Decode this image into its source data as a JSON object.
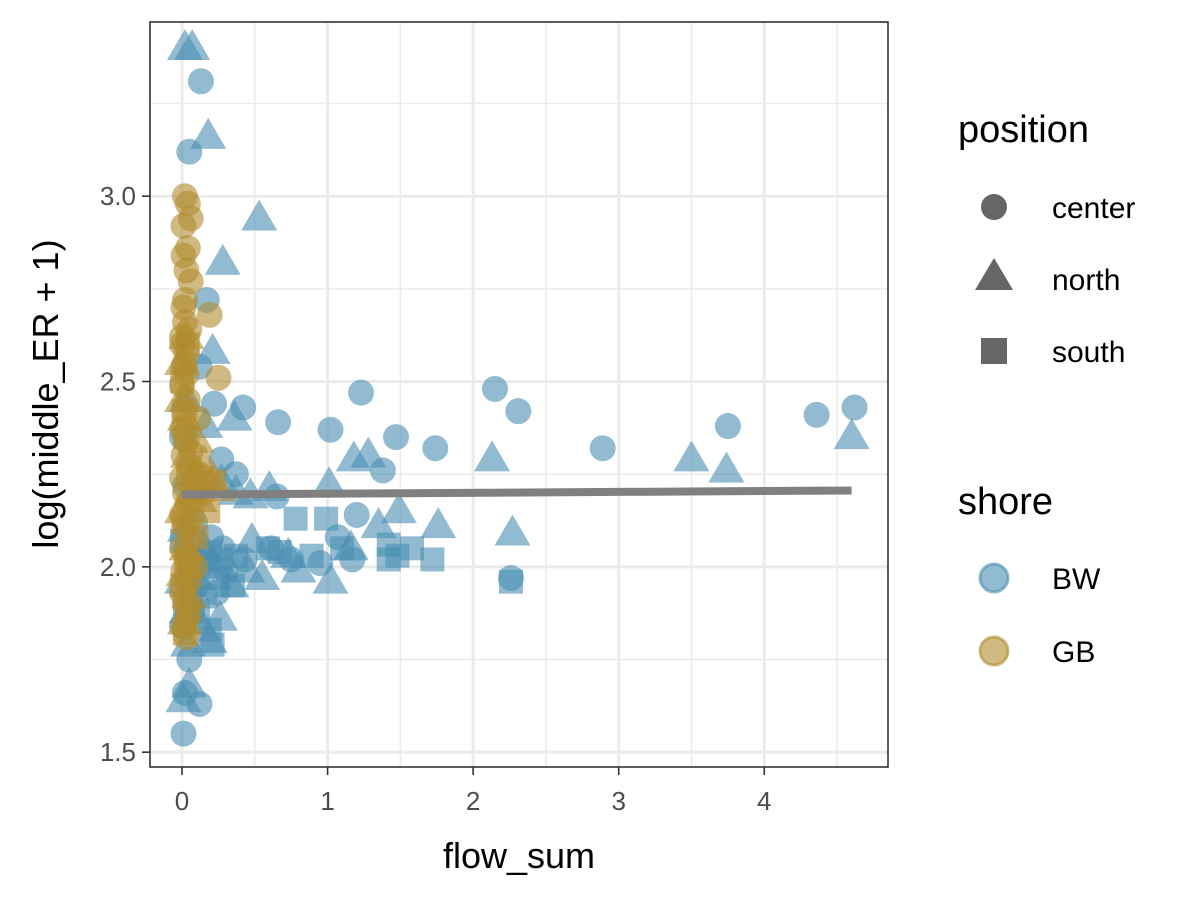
{
  "chart_data": {
    "type": "scatter",
    "xlabel": "flow_sum",
    "ylabel": "log(middle_ER + 1)",
    "xlim": [
      -0.22,
      4.85
    ],
    "ylim": [
      1.46,
      3.47
    ],
    "x_ticks": [
      0,
      1,
      2,
      3,
      4
    ],
    "x_tick_labels": [
      "0",
      "1",
      "2",
      "3",
      "4"
    ],
    "y_ticks": [
      1.5,
      2.0,
      2.5,
      3.0
    ],
    "y_tick_labels": [
      "1.5",
      "2.0",
      "2.5",
      "3.0"
    ],
    "grid": true,
    "theme": "bw",
    "legend_position": "right",
    "legends": [
      {
        "title": "position",
        "items": [
          {
            "label": "center",
            "shape": "circle"
          },
          {
            "label": "north",
            "shape": "triangle"
          },
          {
            "label": "south",
            "shape": "square"
          }
        ]
      },
      {
        "title": "shore",
        "items": [
          {
            "label": "BW",
            "color": "#4a8eb3"
          },
          {
            "label": "GB",
            "color": "#b08c2e"
          }
        ]
      }
    ],
    "colors": {
      "BW": "#4a8eb3",
      "GB": "#b08c2e",
      "trend": "#808080"
    },
    "trend_line": {
      "x": [
        0,
        4.6
      ],
      "y": [
        2.195,
        2.206
      ]
    },
    "series": [
      {
        "shore": "BW",
        "position": "center",
        "points": [
          [
            0.13,
            3.31
          ],
          [
            0.05,
            3.12
          ],
          [
            0.17,
            2.72
          ],
          [
            0.12,
            2.54
          ],
          [
            0.22,
            2.44
          ],
          [
            0.42,
            2.43
          ],
          [
            0.66,
            2.39
          ],
          [
            1.02,
            2.37
          ],
          [
            1.47,
            2.35
          ],
          [
            1.23,
            2.47
          ],
          [
            1.74,
            2.32
          ],
          [
            2.15,
            2.48
          ],
          [
            2.31,
            2.42
          ],
          [
            2.89,
            2.32
          ],
          [
            3.75,
            2.38
          ],
          [
            4.36,
            2.41
          ],
          [
            4.62,
            2.43
          ],
          [
            0.37,
            2.25
          ],
          [
            0.65,
            2.19
          ],
          [
            1.38,
            2.26
          ],
          [
            0.27,
            2.29
          ],
          [
            1.07,
            2.08
          ],
          [
            1.2,
            2.14
          ],
          [
            0.43,
            2.02
          ],
          [
            0.61,
            2.05
          ],
          [
            0.75,
            2.02
          ],
          [
            0.95,
            2.01
          ],
          [
            1.17,
            2.02
          ],
          [
            2.26,
            1.97
          ],
          [
            0.2,
            2.08
          ],
          [
            0.28,
            2.05
          ],
          [
            0.3,
            1.99
          ],
          [
            0.06,
            1.92
          ],
          [
            0.0,
            1.84
          ],
          [
            0.05,
            1.75
          ],
          [
            0.01,
            1.55
          ],
          [
            0.12,
            1.63
          ],
          [
            0.02,
            1.66
          ],
          [
            0.0,
            2.35
          ],
          [
            0.02,
            2.22
          ],
          [
            0.03,
            2.05
          ],
          [
            0.1,
            1.95
          ],
          [
            0.16,
            2.02
          ],
          [
            0.24,
            1.93
          ],
          [
            0.09,
            2.12
          ],
          [
            0.07,
            1.88
          ]
        ]
      },
      {
        "shore": "BW",
        "position": "north",
        "points": [
          [
            0.02,
            3.4
          ],
          [
            0.07,
            3.4
          ],
          [
            0.18,
            3.16
          ],
          [
            0.53,
            2.94
          ],
          [
            0.28,
            2.82
          ],
          [
            0.21,
            2.58
          ],
          [
            0.36,
            2.4
          ],
          [
            0.03,
            2.45
          ],
          [
            0.16,
            2.38
          ],
          [
            1.18,
            2.29
          ],
          [
            1.28,
            2.3
          ],
          [
            2.13,
            2.29
          ],
          [
            3.5,
            2.29
          ],
          [
            3.74,
            2.26
          ],
          [
            4.6,
            2.35
          ],
          [
            0.6,
            2.21
          ],
          [
            1.01,
            2.22
          ],
          [
            1.35,
            2.11
          ],
          [
            1.49,
            2.15
          ],
          [
            1.76,
            2.11
          ],
          [
            2.27,
            2.09
          ],
          [
            0.37,
            2.2
          ],
          [
            0.47,
            2.19
          ],
          [
            0.27,
            2.23
          ],
          [
            0.48,
            2.07
          ],
          [
            0.73,
            2.03
          ],
          [
            1.02,
            1.96
          ],
          [
            1.16,
            2.05
          ],
          [
            0.34,
            1.95
          ],
          [
            0.45,
            1.99
          ],
          [
            0.19,
            1.8
          ],
          [
            0.26,
            1.86
          ],
          [
            0.12,
            1.85
          ],
          [
            0.03,
            1.88
          ],
          [
            0.05,
            1.68
          ],
          [
            0.01,
            1.64
          ],
          [
            0.04,
            1.79
          ],
          [
            0.15,
            2.05
          ],
          [
            0.1,
            1.97
          ],
          [
            0.0,
            1.96
          ],
          [
            0.02,
            2.1
          ],
          [
            0.22,
            2.0
          ],
          [
            0.8,
            1.99
          ],
          [
            0.55,
            1.97
          ]
        ]
      },
      {
        "shore": "BW",
        "position": "south",
        "points": [
          [
            0.78,
            2.13
          ],
          [
            0.99,
            2.13
          ],
          [
            1.42,
            2.06
          ],
          [
            1.58,
            2.05
          ],
          [
            1.48,
            2.03
          ],
          [
            1.72,
            2.02
          ],
          [
            1.42,
            2.02
          ],
          [
            1.1,
            2.05
          ],
          [
            0.89,
            2.03
          ],
          [
            0.67,
            2.04
          ],
          [
            0.59,
            2.05
          ],
          [
            0.37,
            2.03
          ],
          [
            0.27,
            2.02
          ],
          [
            0.2,
            2.04
          ],
          [
            0.12,
            2.01
          ],
          [
            0.25,
            1.97
          ],
          [
            0.35,
            1.95
          ],
          [
            0.16,
            1.92
          ],
          [
            0.19,
            1.83
          ],
          [
            0.21,
            1.79
          ],
          [
            0.11,
            1.88
          ],
          [
            0.08,
            1.95
          ],
          [
            2.26,
            1.96
          ],
          [
            0.06,
            2.02
          ],
          [
            0.0,
            2.07
          ],
          [
            0.02,
            1.9
          ]
        ]
      },
      {
        "shore": "GB",
        "position": "center",
        "points": [
          [
            0.02,
            3.0
          ],
          [
            0.04,
            2.98
          ],
          [
            0.06,
            2.94
          ],
          [
            0.01,
            2.92
          ],
          [
            0.04,
            2.86
          ],
          [
            0.01,
            2.84
          ],
          [
            0.03,
            2.8
          ],
          [
            0.06,
            2.77
          ],
          [
            0.19,
            2.68
          ],
          [
            0.02,
            2.72
          ],
          [
            0.02,
            2.66
          ],
          [
            0.0,
            2.62
          ],
          [
            0.03,
            2.58
          ],
          [
            0.01,
            2.54
          ],
          [
            0.25,
            2.51
          ],
          [
            0.0,
            2.49
          ],
          [
            0.04,
            2.45
          ],
          [
            0.02,
            2.41
          ],
          [
            0.11,
            2.4
          ],
          [
            0.0,
            2.37
          ],
          [
            0.03,
            2.34
          ],
          [
            0.01,
            2.3
          ],
          [
            0.05,
            2.27
          ],
          [
            0.0,
            2.24
          ],
          [
            0.08,
            2.22
          ],
          [
            0.02,
            2.2
          ],
          [
            0.04,
            2.17
          ],
          [
            0.0,
            2.14
          ],
          [
            0.02,
            2.11
          ],
          [
            0.06,
            2.08
          ],
          [
            0.0,
            2.05
          ],
          [
            0.03,
            2.02
          ],
          [
            0.01,
            1.99
          ],
          [
            0.05,
            1.96
          ],
          [
            0.0,
            1.93
          ],
          [
            0.02,
            1.9
          ],
          [
            0.04,
            1.87
          ],
          [
            0.01,
            1.84
          ],
          [
            0.03,
            1.81
          ],
          [
            0.07,
            2.13
          ],
          [
            0.1,
            2.21
          ],
          [
            0.12,
            2.25
          ],
          [
            0.15,
            2.2
          ],
          [
            0.06,
            2.31
          ],
          [
            0.09,
            2.0
          ],
          [
            0.02,
            2.55
          ],
          [
            0.0,
            2.6
          ],
          [
            0.05,
            2.64
          ],
          [
            0.01,
            2.7
          ],
          [
            0.03,
            2.52
          ]
        ]
      },
      {
        "shore": "GB",
        "position": "north",
        "points": [
          [
            0.0,
            2.55
          ],
          [
            0.02,
            2.4
          ],
          [
            0.04,
            2.3
          ],
          [
            0.06,
            2.2
          ],
          [
            0.0,
            2.15
          ],
          [
            0.03,
            2.05
          ],
          [
            0.01,
            1.98
          ],
          [
            0.05,
            1.92
          ],
          [
            0.02,
            1.85
          ],
          [
            0.08,
            2.25
          ],
          [
            0.12,
            2.18
          ],
          [
            0.15,
            2.28
          ],
          [
            0.1,
            2.34
          ],
          [
            0.2,
            2.22
          ],
          [
            0.25,
            2.21
          ],
          [
            0.0,
            2.45
          ],
          [
            0.03,
            2.62
          ]
        ]
      },
      {
        "shore": "GB",
        "position": "south",
        "points": [
          [
            0.0,
            2.5
          ],
          [
            0.02,
            2.35
          ],
          [
            0.04,
            2.25
          ],
          [
            0.01,
            2.12
          ],
          [
            0.03,
            2.02
          ],
          [
            0.0,
            1.95
          ],
          [
            0.05,
            1.88
          ],
          [
            0.02,
            1.82
          ],
          [
            0.07,
            2.18
          ],
          [
            0.1,
            2.08
          ],
          [
            0.14,
            2.24
          ],
          [
            0.18,
            2.15
          ],
          [
            0.22,
            2.23
          ],
          [
            0.01,
            2.42
          ],
          [
            0.04,
            2.6
          ],
          [
            0.06,
            2.0
          ]
        ]
      }
    ]
  }
}
